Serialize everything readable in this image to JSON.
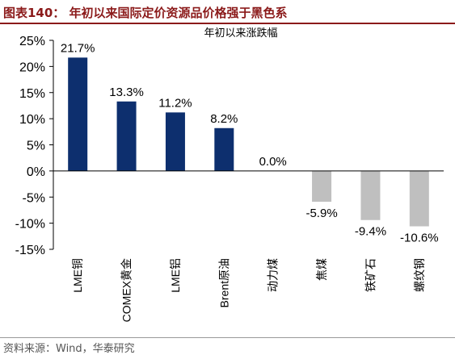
{
  "figure": {
    "title": "图表140：   年初以来国际定价资源品价格强于黑色系",
    "source": "资料来源：Wind，华泰研究"
  },
  "colors": {
    "title_red": "#8b1a1a",
    "positive_bar": "#0d2f6e",
    "negative_bar": "#bfbfbf"
  },
  "chart_data": {
    "type": "bar",
    "title": "年初以来涨跌幅",
    "categories": [
      "LME铜",
      "COMEX黄金",
      "LME铝",
      "Brent原油",
      "动力煤",
      "焦煤",
      "铁矿石",
      "螺纹钢"
    ],
    "values": [
      21.7,
      13.3,
      11.2,
      8.2,
      0.0,
      -5.9,
      -9.4,
      -10.6
    ],
    "data_labels": [
      "21.7%",
      "13.3%",
      "11.2%",
      "8.2%",
      "0.0%",
      "-5.9%",
      "-9.4%",
      "-10.6%"
    ],
    "yticks": [
      25,
      20,
      15,
      10,
      5,
      0,
      -5,
      -10,
      -15
    ],
    "ytick_labels": [
      "25%",
      "20%",
      "15%",
      "10%",
      "5%",
      "0%",
      "-5%",
      "-10%",
      "-15%"
    ],
    "ylim": [
      -15,
      25
    ],
    "grid": false,
    "legend": "none"
  }
}
